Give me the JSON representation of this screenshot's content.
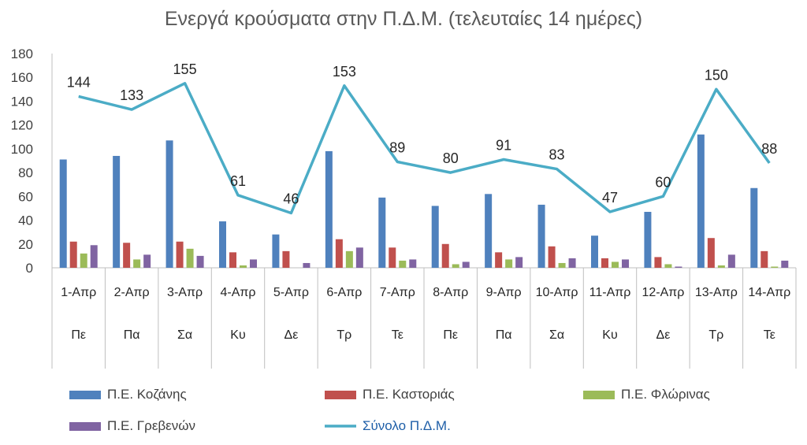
{
  "chart_data": {
    "type": "bar",
    "title": "Ενεργά κρούσματα στην Π.Δ.Μ. (τελευταίες 14 ημέρες)",
    "categories": [
      "1-Απρ",
      "2-Απρ",
      "3-Απρ",
      "4-Απρ",
      "5-Απρ",
      "6-Απρ",
      "7-Απρ",
      "8-Απρ",
      "9-Απρ",
      "10-Απρ",
      "11-Απρ",
      "12-Απρ",
      "13-Απρ",
      "14-Απρ"
    ],
    "weekdays": [
      "Πε",
      "Πα",
      "Σα",
      "Κυ",
      "Δε",
      "Τρ",
      "Τε",
      "Πε",
      "Πα",
      "Σα",
      "Κυ",
      "Δε",
      "Τρ",
      "Τε"
    ],
    "ylim": [
      0,
      180
    ],
    "yticks": [
      0,
      20,
      40,
      60,
      80,
      100,
      120,
      140,
      160,
      180
    ],
    "grid": false,
    "legend_position": "bottom",
    "series": [
      {
        "name": "Π.Ε. Κοζάνης",
        "type": "bar",
        "color": "#4F81BD",
        "values": [
          91,
          94,
          107,
          39,
          28,
          98,
          59,
          52,
          62,
          53,
          27,
          47,
          112,
          67
        ]
      },
      {
        "name": "Π.Ε. Καστοριάς",
        "type": "bar",
        "color": "#C0504D",
        "values": [
          22,
          21,
          22,
          13,
          14,
          24,
          17,
          20,
          13,
          18,
          8,
          9,
          25,
          14
        ]
      },
      {
        "name": "Π.Ε. Φλώρινας",
        "type": "bar",
        "color": "#9BBB59",
        "values": [
          12,
          7,
          16,
          2,
          0,
          14,
          6,
          3,
          7,
          4,
          5,
          3,
          2,
          1
        ]
      },
      {
        "name": "Π.Ε. Γρεβενών",
        "type": "bar",
        "color": "#8064A2",
        "values": [
          19,
          11,
          10,
          7,
          4,
          17,
          7,
          5,
          9,
          8,
          7,
          1,
          11,
          6
        ]
      },
      {
        "name": "Σύνολο Π.Δ.Μ.",
        "type": "line",
        "color": "#4BACC6",
        "values": [
          144,
          133,
          155,
          61,
          46,
          153,
          89,
          80,
          91,
          83,
          47,
          60,
          150,
          88
        ],
        "data_labels": [
          144,
          133,
          155,
          61,
          46,
          153,
          89,
          80,
          91,
          83,
          47,
          60,
          150,
          88
        ]
      }
    ]
  }
}
